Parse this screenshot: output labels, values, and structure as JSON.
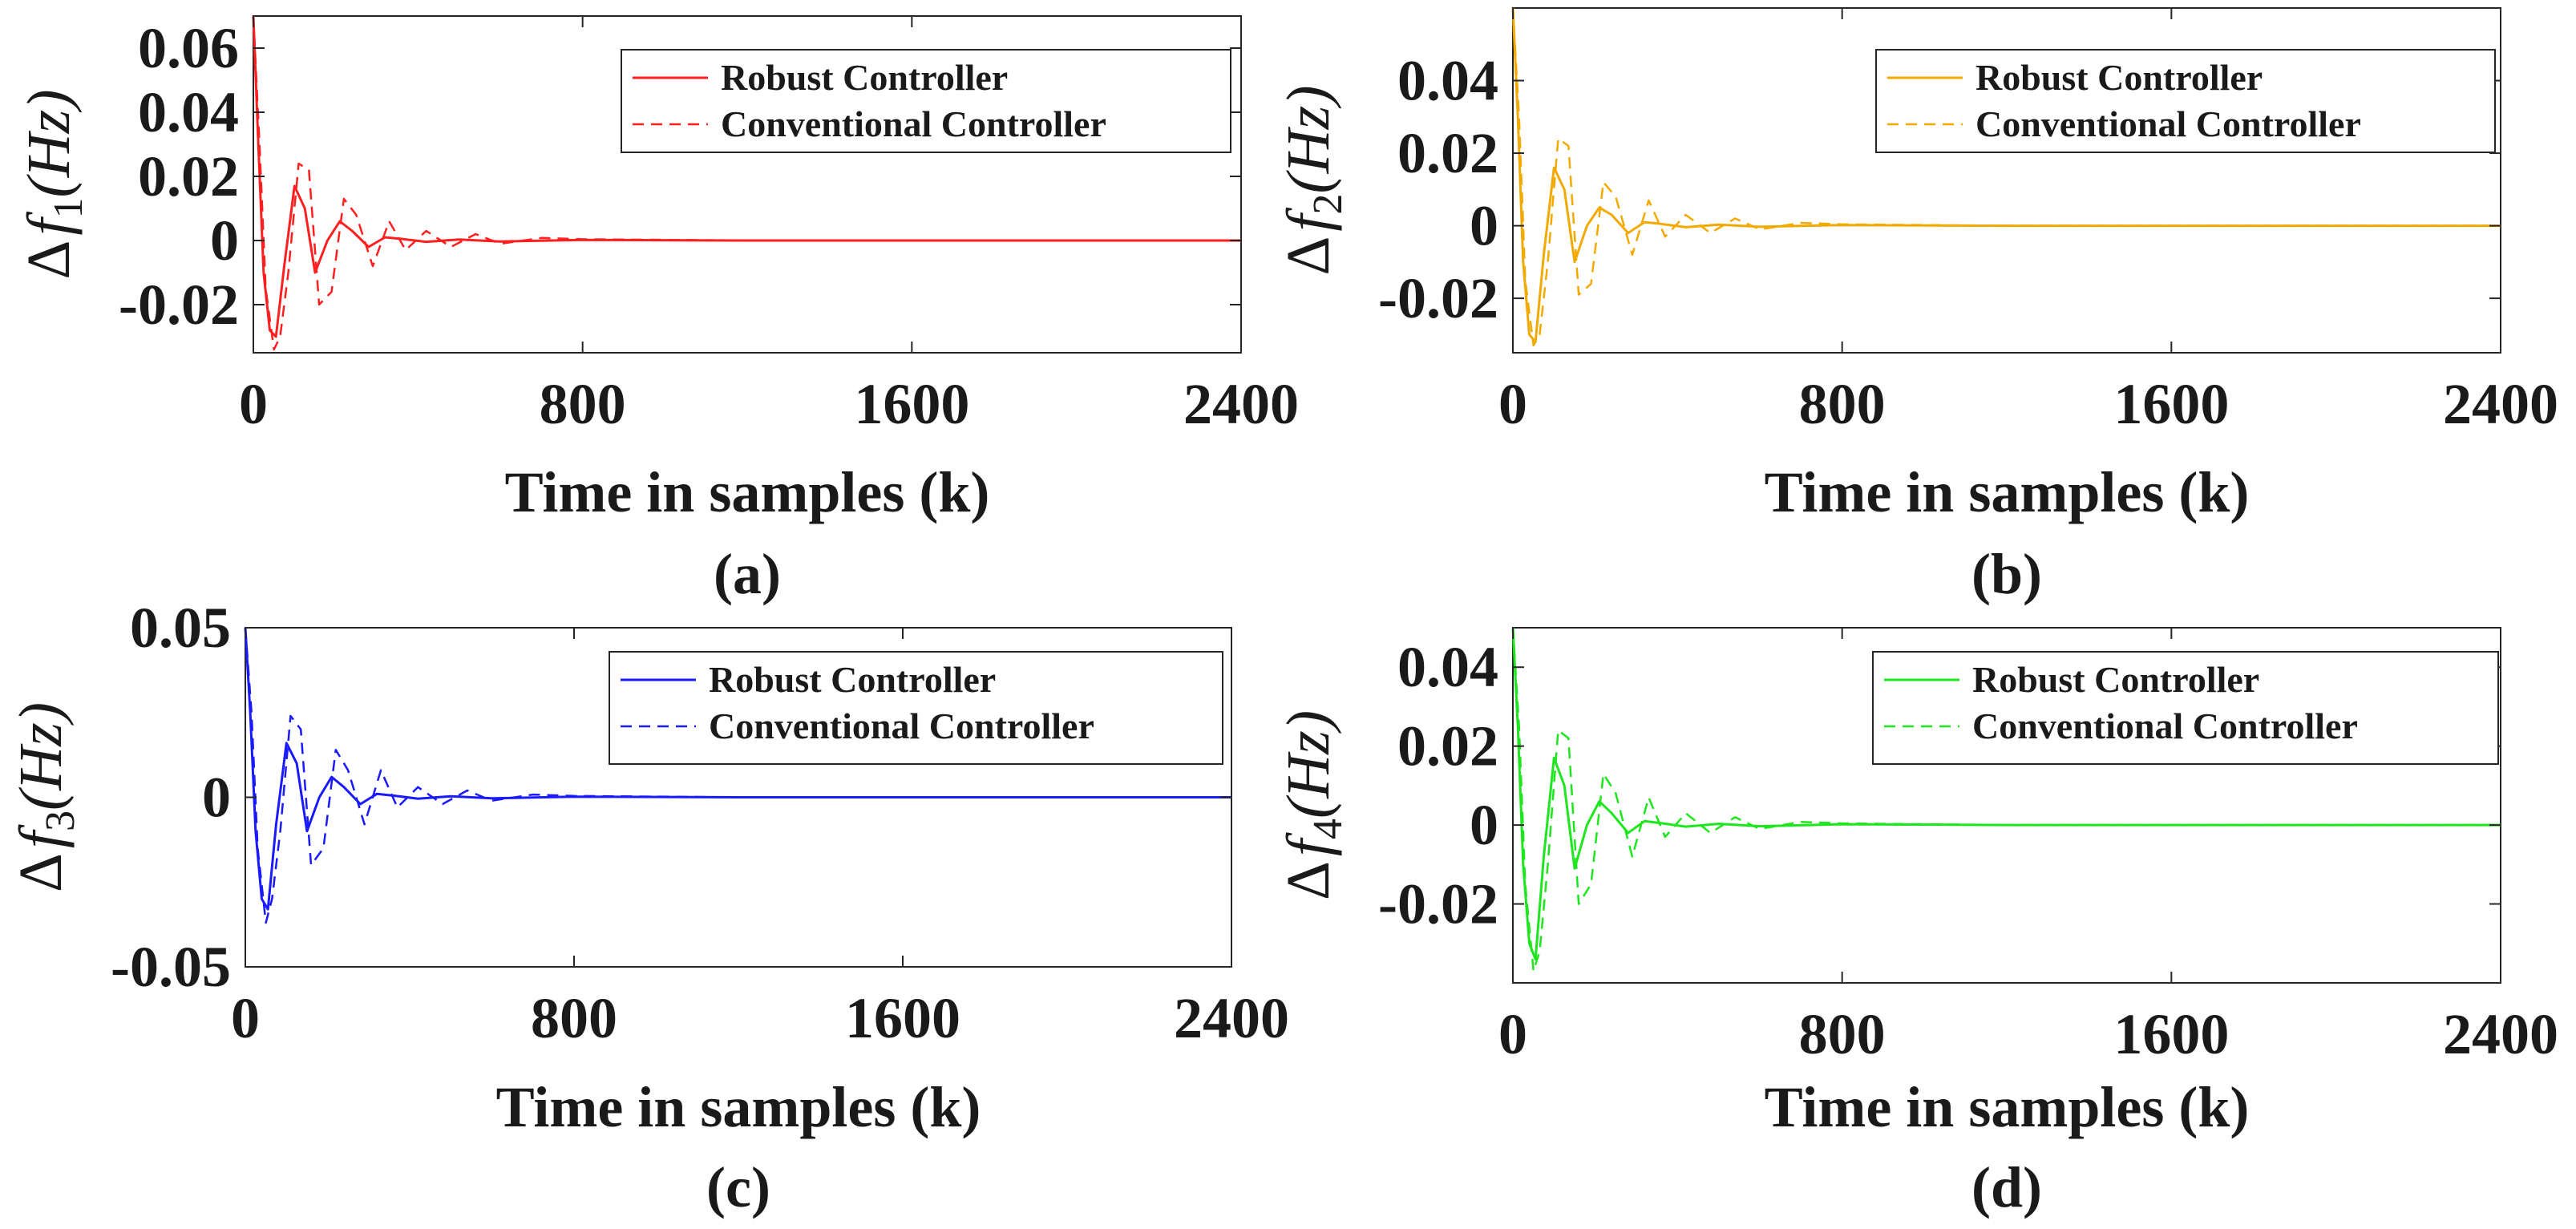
{
  "figure": {
    "panels": [
      {
        "id": "a",
        "panel_label": "(a)",
        "color": "#ff1f1f",
        "ylabel": {
          "delta": "Δ",
          "var": "f",
          "sub": "1",
          "unit": "(Hz)"
        },
        "xlabel": "Time in samples (k)",
        "yticks": [
          "0.06",
          "0.04",
          "0.02",
          "0",
          "-0.02"
        ],
        "xticks": [
          "0",
          "800",
          "1600",
          "2400"
        ],
        "legend": [
          "Robust Controller",
          "Conventional Controller"
        ]
      },
      {
        "id": "b",
        "panel_label": "(b)",
        "color": "#f2a900",
        "ylabel": {
          "delta": "Δ",
          "var": "f",
          "sub": "2",
          "unit": "(Hz)"
        },
        "xlabel": "Time in samples (k)",
        "yticks": [
          "0.04",
          "0.02",
          "0",
          "-0.02"
        ],
        "xticks": [
          "0",
          "800",
          "1600",
          "2400"
        ],
        "legend": [
          "Robust Controller",
          "Conventional Controller"
        ]
      },
      {
        "id": "c",
        "panel_label": "(c)",
        "color": "#1a1aff",
        "ylabel": {
          "delta": "Δ",
          "var": "f",
          "sub": "3",
          "unit": "(Hz)"
        },
        "xlabel": "Time in samples (k)",
        "yticks": [
          "0.05",
          "0",
          "-0.05"
        ],
        "xticks": [
          "0",
          "800",
          "1600",
          "2400"
        ],
        "legend": [
          "Robust Controller",
          "Conventional Controller"
        ]
      },
      {
        "id": "d",
        "panel_label": "(d)",
        "color": "#1ee61e",
        "ylabel": {
          "delta": "Δ",
          "var": "f",
          "sub": "4",
          "unit": "(Hz)"
        },
        "xlabel": "Time in samples (k)",
        "yticks": [
          "0.04",
          "0.02",
          "0",
          "-0.02"
        ],
        "xticks": [
          "0",
          "800",
          "1600",
          "2400"
        ],
        "legend": [
          "Robust Controller",
          "Conventional Controller"
        ]
      }
    ]
  },
  "chart_data": [
    {
      "type": "line",
      "panel": "a",
      "xlabel": "Time in samples (k)",
      "ylabel": "Δf1(Hz)",
      "xlim": [
        0,
        2400
      ],
      "ylim": [
        -0.035,
        0.07
      ],
      "grid": false,
      "legend_position": "top-right",
      "series": [
        {
          "name": "Robust Controller",
          "style": "solid",
          "x": [
            0,
            12,
            25,
            40,
            55,
            75,
            100,
            125,
            150,
            180,
            210,
            240,
            280,
            320,
            360,
            420,
            500,
            600,
            800,
            1200,
            1600,
            2000,
            2400
          ],
          "y": [
            0.07,
            0.03,
            -0.01,
            -0.028,
            -0.03,
            -0.008,
            0.017,
            0.01,
            -0.01,
            0.0,
            0.006,
            0.003,
            -0.002,
            0.001,
            0.0005,
            -0.0004,
            0.0003,
            -0.0003,
            0.0002,
            0.0,
            0.0,
            0.0,
            0.0
          ]
        },
        {
          "name": "Conventional Controller",
          "style": "dashed",
          "x": [
            0,
            15,
            30,
            50,
            65,
            85,
            110,
            135,
            160,
            190,
            220,
            250,
            290,
            330,
            370,
            420,
            480,
            540,
            600,
            700,
            800,
            1200,
            1600,
            2000,
            2400
          ],
          "y": [
            0.07,
            0.03,
            -0.015,
            -0.034,
            -0.03,
            -0.01,
            0.024,
            0.022,
            -0.02,
            -0.016,
            0.013,
            0.008,
            -0.008,
            0.006,
            -0.003,
            0.003,
            -0.002,
            0.002,
            -0.001,
            0.0008,
            0.0004,
            0.0,
            0.0,
            0.0,
            0.0
          ]
        }
      ]
    },
    {
      "type": "line",
      "panel": "b",
      "xlabel": "Time in samples (k)",
      "ylabel": "Δf2(Hz)",
      "xlim": [
        0,
        2400
      ],
      "ylim": [
        -0.035,
        0.06
      ],
      "grid": false,
      "legend_position": "top-right",
      "series": [
        {
          "name": "Robust Controller",
          "style": "solid",
          "x": [
            0,
            12,
            25,
            40,
            55,
            75,
            100,
            125,
            150,
            180,
            210,
            240,
            280,
            320,
            360,
            420,
            500,
            600,
            800,
            1200,
            1600,
            2000,
            2400
          ],
          "y": [
            0.06,
            0.03,
            -0.01,
            -0.03,
            -0.032,
            -0.008,
            0.016,
            0.01,
            -0.01,
            0.0,
            0.005,
            0.003,
            -0.002,
            0.001,
            0.0005,
            -0.0004,
            0.0003,
            -0.0003,
            0.0002,
            0.0,
            0.0,
            0.0,
            0.0
          ]
        },
        {
          "name": "Conventional Controller",
          "style": "dashed",
          "x": [
            0,
            15,
            30,
            50,
            65,
            85,
            110,
            135,
            160,
            190,
            220,
            250,
            290,
            330,
            370,
            420,
            480,
            540,
            600,
            700,
            800,
            1200,
            1600,
            2000,
            2400
          ],
          "y": [
            0.06,
            0.03,
            -0.015,
            -0.033,
            -0.03,
            -0.01,
            0.024,
            0.022,
            -0.019,
            -0.016,
            0.012,
            0.008,
            -0.008,
            0.007,
            -0.003,
            0.003,
            -0.002,
            0.002,
            -0.001,
            0.0008,
            0.0004,
            0.0,
            0.0,
            0.0,
            0.0
          ]
        }
      ]
    },
    {
      "type": "line",
      "panel": "c",
      "xlabel": "Time in samples (k)",
      "ylabel": "Δf3(Hz)",
      "xlim": [
        0,
        2400
      ],
      "ylim": [
        -0.05,
        0.05
      ],
      "grid": false,
      "legend_position": "top-right",
      "series": [
        {
          "name": "Robust Controller",
          "style": "solid",
          "x": [
            0,
            12,
            25,
            40,
            55,
            75,
            100,
            125,
            150,
            180,
            210,
            240,
            280,
            320,
            360,
            420,
            500,
            600,
            800,
            1200,
            1600,
            2000,
            2400
          ],
          "y": [
            0.05,
            0.025,
            -0.01,
            -0.03,
            -0.033,
            -0.008,
            0.016,
            0.01,
            -0.01,
            0.0,
            0.006,
            0.003,
            -0.002,
            0.001,
            0.0005,
            -0.0004,
            0.0003,
            -0.0003,
            0.0002,
            0.0,
            0.0,
            0.0,
            0.0
          ]
        },
        {
          "name": "Conventional Controller",
          "style": "dashed",
          "x": [
            0,
            15,
            30,
            50,
            65,
            85,
            110,
            135,
            160,
            190,
            220,
            250,
            290,
            330,
            370,
            420,
            480,
            540,
            600,
            700,
            800,
            1200,
            1600,
            2000,
            2400
          ],
          "y": [
            0.05,
            0.025,
            -0.015,
            -0.037,
            -0.03,
            -0.01,
            0.024,
            0.02,
            -0.02,
            -0.015,
            0.014,
            0.008,
            -0.008,
            0.008,
            -0.003,
            0.003,
            -0.002,
            0.002,
            -0.001,
            0.0008,
            0.0004,
            0.0,
            0.0,
            0.0,
            0.0
          ]
        }
      ]
    },
    {
      "type": "line",
      "panel": "d",
      "xlabel": "Time in samples (k)",
      "ylabel": "Δf4(Hz)",
      "xlim": [
        0,
        2400
      ],
      "ylim": [
        -0.04,
        0.05
      ],
      "grid": false,
      "legend_position": "top-right",
      "series": [
        {
          "name": "Robust Controller",
          "style": "solid",
          "x": [
            0,
            12,
            25,
            40,
            55,
            75,
            100,
            125,
            150,
            180,
            210,
            240,
            280,
            320,
            360,
            420,
            500,
            600,
            800,
            1200,
            1600,
            2000,
            2400
          ],
          "y": [
            0.05,
            0.025,
            -0.01,
            -0.03,
            -0.034,
            -0.008,
            0.017,
            0.01,
            -0.011,
            0.0,
            0.006,
            0.003,
            -0.002,
            0.001,
            0.0005,
            -0.0004,
            0.0003,
            -0.0003,
            0.0002,
            0.0,
            0.0,
            0.0,
            0.0
          ]
        },
        {
          "name": "Conventional Controller",
          "style": "dashed",
          "x": [
            0,
            15,
            30,
            50,
            65,
            85,
            110,
            135,
            160,
            190,
            220,
            250,
            290,
            330,
            370,
            420,
            480,
            540,
            600,
            700,
            800,
            1200,
            1600,
            2000,
            2400
          ],
          "y": [
            0.05,
            0.025,
            -0.015,
            -0.037,
            -0.032,
            -0.01,
            0.024,
            0.022,
            -0.02,
            -0.015,
            0.013,
            0.008,
            -0.008,
            0.007,
            -0.003,
            0.003,
            -0.002,
            0.002,
            -0.001,
            0.0008,
            0.0004,
            0.0,
            0.0,
            0.0,
            0.0
          ]
        }
      ]
    }
  ]
}
